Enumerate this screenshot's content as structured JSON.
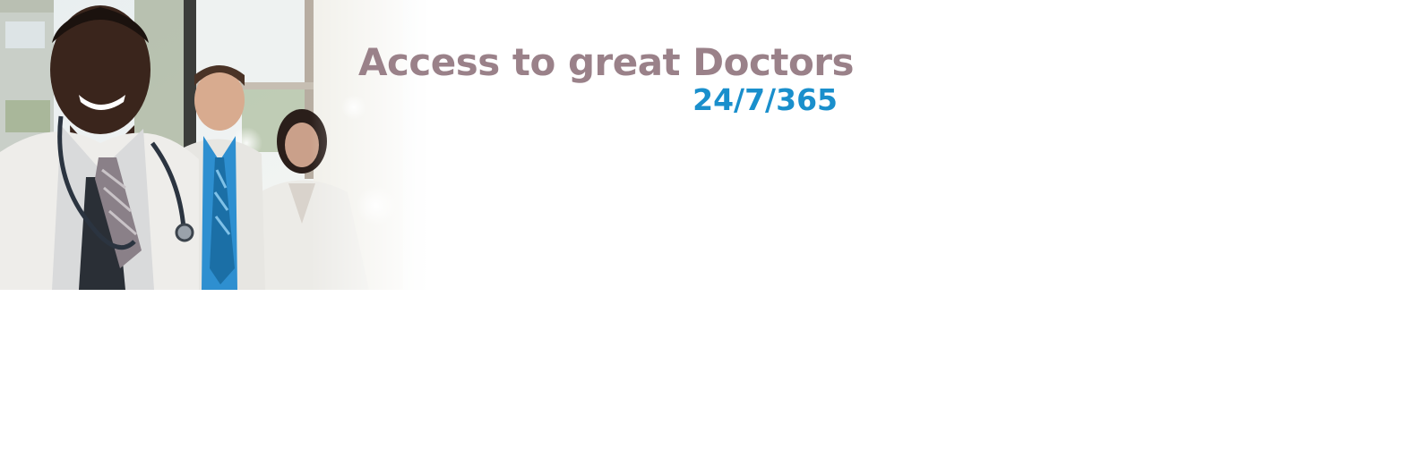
{
  "banner": {
    "headline": "Access to great Doctors",
    "tagline": "24/7/365",
    "colors": {
      "headline": "#9a8189",
      "tagline": "#1a8fcc",
      "background": "#ffffff"
    }
  }
}
